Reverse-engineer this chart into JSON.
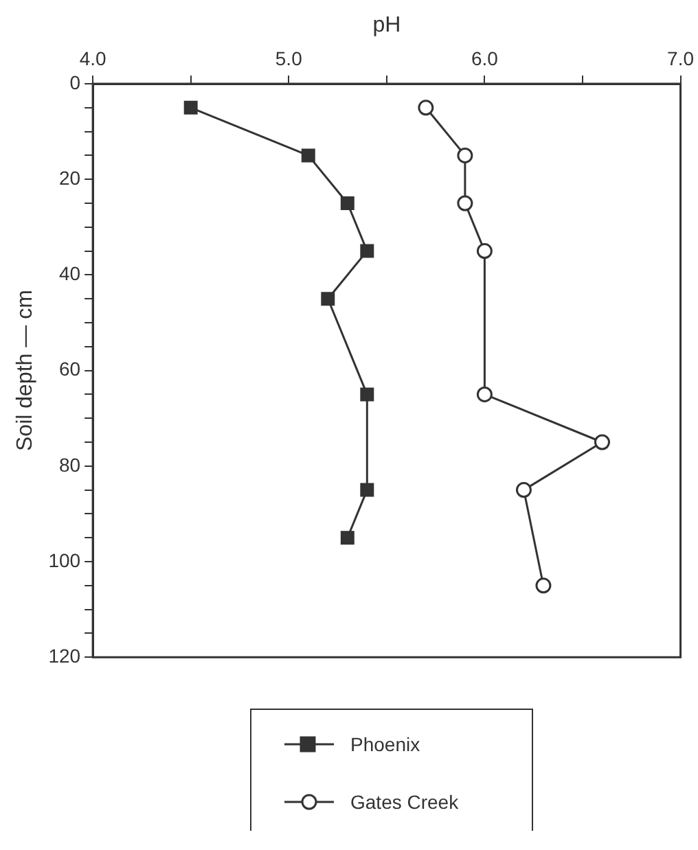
{
  "chart_data": {
    "type": "line",
    "xlabel": "pH",
    "ylabel": "Soil depth — cm",
    "xlim": [
      4,
      7
    ],
    "xticks": [
      {
        "value": 4,
        "label": "4.0"
      },
      {
        "value": 4.5,
        "label": null
      },
      {
        "value": 5,
        "label": "5.0"
      },
      {
        "value": 5.5,
        "label": null
      },
      {
        "value": 6,
        "label": "6.0"
      },
      {
        "value": 6.5,
        "label": null
      },
      {
        "value": 7,
        "label": "7.0"
      }
    ],
    "ylim": [
      120,
      0
    ],
    "yticks": [
      0,
      {
        "value": 5,
        "label": null
      },
      {
        "value": 10,
        "label": null
      },
      {
        "value": 15,
        "label": null
      },
      20,
      {
        "value": 25,
        "label": null
      },
      {
        "value": 30,
        "label": null
      },
      {
        "value": 35,
        "label": null
      },
      40,
      {
        "value": 45,
        "label": null
      },
      {
        "value": 50,
        "label": null
      },
      {
        "value": 55,
        "label": null
      },
      60,
      {
        "value": 65,
        "label": null
      },
      {
        "value": 70,
        "label": null
      },
      {
        "value": 75,
        "label": null
      },
      80,
      {
        "value": 85,
        "label": null
      },
      {
        "value": 90,
        "label": null
      },
      {
        "value": 95,
        "label": null
      },
      100,
      {
        "value": 105,
        "label": null
      },
      {
        "value": 110,
        "label": null
      },
      {
        "value": 115,
        "label": null
      },
      120
    ],
    "grid": false,
    "legend": "bottom",
    "line_style": "solid",
    "series": [
      {
        "name": "Phoenix",
        "color": "#333333",
        "marker": "square",
        "x": [
          4.5,
          5.1,
          5.3,
          5.4,
          5.2,
          5.4,
          5.4,
          5.3
        ],
        "values": [
          5,
          15,
          25,
          35,
          45,
          65,
          85,
          95
        ]
      },
      {
        "name": "Gates Creek",
        "color": "#333333",
        "marker": "circle",
        "x": [
          5.7,
          5.9,
          5.9,
          6.0,
          6.0,
          6.6,
          6.2,
          6.3
        ],
        "values": [
          5,
          15,
          25,
          35,
          65,
          75,
          85,
          105
        ]
      }
    ]
  }
}
